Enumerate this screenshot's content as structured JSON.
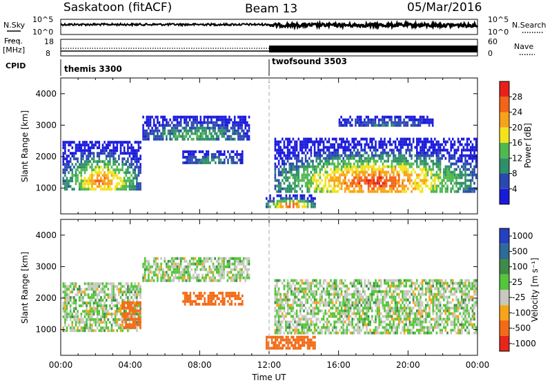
{
  "header": {
    "station": "Saskatoon (fitACF)",
    "beam": "Beam 13",
    "date": "05/Mar/2016"
  },
  "noise_panel": {
    "left_label": "N.Sky",
    "right_label": "N.Search",
    "left_ticks": [
      "10^5",
      "10^0"
    ],
    "right_ticks": [
      "10^5",
      "10^0"
    ]
  },
  "freq_panel": {
    "left_label_1": "Freq.",
    "left_label_2": "[MHz]",
    "right_label": "Nave",
    "left_ticks": [
      "18",
      "8"
    ],
    "right_ticks": [
      "60",
      "0"
    ]
  },
  "cpid": {
    "label": "CPID",
    "modes": [
      {
        "name": "themis 3300",
        "start": "00:00",
        "end": "12:00"
      },
      {
        "name": "twofsound 3503",
        "start": "12:00",
        "end": "24:00"
      }
    ]
  },
  "chart_data": [
    {
      "type": "heatmap",
      "name": "power",
      "ylabel": "Slant Range [km]",
      "ylim": [
        180,
        4500
      ],
      "yticks": [
        1000,
        2000,
        3000,
        4000
      ],
      "xlim": [
        0,
        24
      ],
      "colorbar": {
        "label": "Power [dB]",
        "ticks": [
          4,
          8,
          12,
          16,
          20,
          24,
          28
        ],
        "colors": [
          "#1a1adb",
          "#2a49b0",
          "#2f8f68",
          "#50b850",
          "#f2e31d",
          "#f7a21a",
          "#f36318",
          "#e8201a"
        ]
      },
      "echo_regions": [
        {
          "t_start": 0.1,
          "t_end": 4.7,
          "range_low": 900,
          "range_high": 2500,
          "peak_dB": 24
        },
        {
          "t_start": 4.7,
          "t_end": 11.0,
          "range_low": 2500,
          "range_high": 3300,
          "peak_dB": 12
        },
        {
          "t_start": 7.0,
          "t_end": 10.6,
          "range_low": 1700,
          "range_high": 2200,
          "peak_dB": 10
        },
        {
          "t_start": 11.8,
          "t_end": 14.7,
          "range_low": 300,
          "range_high": 800,
          "peak_dB": 28
        },
        {
          "t_start": 12.3,
          "t_end": 24.0,
          "range_low": 800,
          "range_high": 2600,
          "peak_dB": 28
        },
        {
          "t_start": 16.0,
          "t_end": 21.5,
          "range_low": 2900,
          "range_high": 3300,
          "peak_dB": 6
        }
      ]
    },
    {
      "type": "heatmap",
      "name": "velocity",
      "ylabel": "Slant Range [km]",
      "xlabel": "Time UT",
      "ylim": [
        180,
        4500
      ],
      "yticks": [
        1000,
        2000,
        3000,
        4000
      ],
      "xlim": [
        0,
        24
      ],
      "xticks": [
        "00:00",
        "04:00",
        "08:00",
        "12:00",
        "16:00",
        "20:00",
        "00:00"
      ],
      "colorbar": {
        "label": "Velocity [m s⁻¹]",
        "ticks": [
          "1000",
          "500",
          "100",
          "25",
          "-25",
          "-100",
          "-500",
          "-1000"
        ],
        "colors": [
          "#2540c0",
          "#2f6a98",
          "#3e8c48",
          "#55c53a",
          "#c8c8c0",
          "#f7a41a",
          "#f36b17",
          "#e8251a"
        ]
      },
      "echo_regions": [
        {
          "t_start": 0.1,
          "t_end": 4.7,
          "range_low": 900,
          "range_high": 2500,
          "typical_velocity": 0
        },
        {
          "t_start": 3.5,
          "t_end": 4.7,
          "range_low": 1000,
          "range_high": 1900,
          "typical_velocity": -200
        },
        {
          "t_start": 4.7,
          "t_end": 11.0,
          "range_low": 2500,
          "range_high": 3300,
          "typical_velocity": 0
        },
        {
          "t_start": 7.0,
          "t_end": 10.6,
          "range_low": 1700,
          "range_high": 2200,
          "typical_velocity": -300
        },
        {
          "t_start": 11.8,
          "t_end": 14.7,
          "range_low": 300,
          "range_high": 800,
          "typical_velocity": -200
        },
        {
          "t_start": 12.3,
          "t_end": 24.0,
          "range_low": 800,
          "range_high": 2600,
          "typical_velocity": 0
        }
      ]
    }
  ]
}
